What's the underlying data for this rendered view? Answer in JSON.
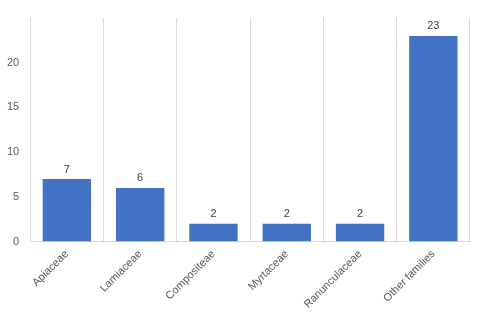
{
  "chart_data": {
    "type": "bar",
    "categories": [
      "Apiaceae",
      "Lamiaceae",
      "Compositeae",
      "Myrtaceae",
      "Ranunculaceae",
      "Other families"
    ],
    "values": [
      7,
      6,
      2,
      2,
      2,
      23
    ],
    "color": "#4472c4",
    "ylim": [
      0,
      25
    ],
    "yticks": [
      0,
      5,
      10,
      15,
      20
    ],
    "grid": true,
    "data_labels": true
  }
}
